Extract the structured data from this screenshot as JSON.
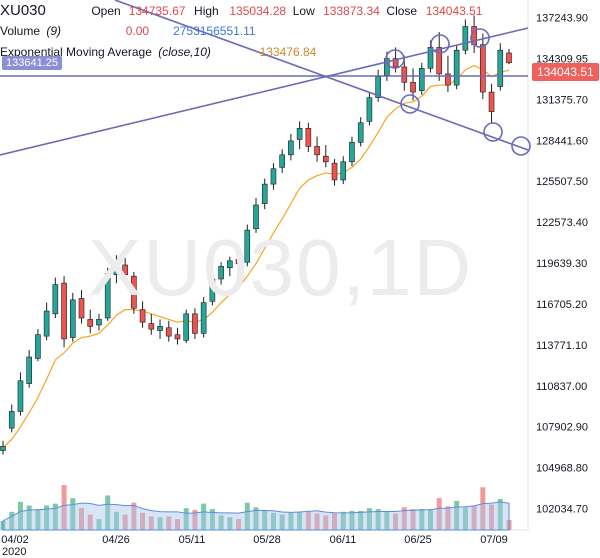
{
  "legend": {
    "symbol": "XU030",
    "open_label": "Open",
    "open_value": "134735.67",
    "high_label": "High",
    "high_value": "135034.28",
    "low_label": "Low",
    "low_value": "133873.34",
    "close_label": "Close",
    "close_value": "134043.51",
    "volume_label": "Volume",
    "volume_param": "(9)",
    "volume_value": "0.00",
    "volume_ma_value": "2753156551.11",
    "ema_label": "Exponential Moving Average",
    "ema_param": "(close,10)",
    "ema_value": "133476.84"
  },
  "watermark": "XU030,1D",
  "price_tags": {
    "left_value": "133641.25",
    "right_value": "134043.51"
  },
  "colors": {
    "up": "#26a69a",
    "down": "#ef5350",
    "ema": "#f5a623",
    "trendline": "#6b6bb8",
    "volume_ma": "#a9c6ee"
  },
  "chart_data": {
    "type": "candlestick",
    "ylim": [
      100500,
      138500
    ],
    "y_ticks": [
      "137243.90",
      "134309.95",
      "131375.70",
      "128441.60",
      "125507.50",
      "122573.40",
      "119639.30",
      "116705.20",
      "113771.10",
      "110837.00",
      "107902.90",
      "104968.80",
      "102034.70"
    ],
    "x_ticks": [
      "04/02",
      "04/26",
      "05/11",
      "05/28",
      "06/11",
      "06/25",
      "07/09"
    ],
    "x_sublabel": "2020",
    "candles": [
      {
        "o": 106200,
        "h": 106900,
        "l": 105900,
        "c": 106500
      },
      {
        "o": 107800,
        "h": 109500,
        "l": 107500,
        "c": 109000
      },
      {
        "o": 109000,
        "h": 111800,
        "l": 108700,
        "c": 111200
      },
      {
        "o": 111000,
        "h": 113400,
        "l": 110700,
        "c": 112900
      },
      {
        "o": 112800,
        "h": 114900,
        "l": 112600,
        "c": 114500
      },
      {
        "o": 114400,
        "h": 116800,
        "l": 114100,
        "c": 116200
      },
      {
        "o": 116000,
        "h": 118600,
        "l": 115700,
        "c": 118100
      },
      {
        "o": 118200,
        "h": 118700,
        "l": 113600,
        "c": 114200
      },
      {
        "o": 114300,
        "h": 117500,
        "l": 114000,
        "c": 117000
      },
      {
        "o": 117100,
        "h": 117700,
        "l": 115300,
        "c": 115700
      },
      {
        "o": 115600,
        "h": 116300,
        "l": 114600,
        "c": 115100
      },
      {
        "o": 115200,
        "h": 116000,
        "l": 114800,
        "c": 115600
      },
      {
        "o": 115700,
        "h": 119300,
        "l": 115500,
        "c": 118900
      },
      {
        "o": 118800,
        "h": 120200,
        "l": 118200,
        "c": 119400
      },
      {
        "o": 119500,
        "h": 120000,
        "l": 118300,
        "c": 118800
      },
      {
        "o": 118700,
        "h": 119000,
        "l": 116000,
        "c": 116400
      },
      {
        "o": 116300,
        "h": 116900,
        "l": 115000,
        "c": 115400
      },
      {
        "o": 115300,
        "h": 116000,
        "l": 114500,
        "c": 114900
      },
      {
        "o": 114800,
        "h": 115600,
        "l": 114200,
        "c": 115100
      },
      {
        "o": 115000,
        "h": 115500,
        "l": 114000,
        "c": 114400
      },
      {
        "o": 114500,
        "h": 115000,
        "l": 113800,
        "c": 114200
      },
      {
        "o": 114100,
        "h": 116300,
        "l": 113900,
        "c": 116000
      },
      {
        "o": 116000,
        "h": 116400,
        "l": 114200,
        "c": 114600
      },
      {
        "o": 114600,
        "h": 117200,
        "l": 114300,
        "c": 116800
      },
      {
        "o": 116900,
        "h": 118900,
        "l": 116600,
        "c": 118500
      },
      {
        "o": 118500,
        "h": 119700,
        "l": 118100,
        "c": 119400
      },
      {
        "o": 119300,
        "h": 120100,
        "l": 118700,
        "c": 119800
      },
      {
        "o": 119900,
        "h": 120300,
        "l": 119100,
        "c": 119600
      },
      {
        "o": 119700,
        "h": 122400,
        "l": 119400,
        "c": 122000
      },
      {
        "o": 122100,
        "h": 124300,
        "l": 121800,
        "c": 123800
      },
      {
        "o": 123900,
        "h": 125700,
        "l": 123500,
        "c": 125300
      },
      {
        "o": 125300,
        "h": 126800,
        "l": 124900,
        "c": 126400
      },
      {
        "o": 126500,
        "h": 127800,
        "l": 126100,
        "c": 127400
      },
      {
        "o": 127400,
        "h": 128900,
        "l": 127000,
        "c": 128400
      },
      {
        "o": 128500,
        "h": 129800,
        "l": 127800,
        "c": 129300
      },
      {
        "o": 129300,
        "h": 129700,
        "l": 127600,
        "c": 128000
      },
      {
        "o": 128000,
        "h": 128700,
        "l": 126900,
        "c": 127400
      },
      {
        "o": 127300,
        "h": 128100,
        "l": 126500,
        "c": 126900
      },
      {
        "o": 126800,
        "h": 127100,
        "l": 125200,
        "c": 125600
      },
      {
        "o": 125600,
        "h": 127300,
        "l": 125300,
        "c": 126900
      },
      {
        "o": 126900,
        "h": 128700,
        "l": 126600,
        "c": 128300
      },
      {
        "o": 128300,
        "h": 130100,
        "l": 128000,
        "c": 129700
      },
      {
        "o": 129800,
        "h": 131900,
        "l": 129500,
        "c": 131500
      },
      {
        "o": 131500,
        "h": 133500,
        "l": 131200,
        "c": 133000
      },
      {
        "o": 133100,
        "h": 134800,
        "l": 132700,
        "c": 134300
      },
      {
        "o": 134300,
        "h": 135100,
        "l": 133300,
        "c": 133700
      },
      {
        "o": 133700,
        "h": 134500,
        "l": 132000,
        "c": 132600
      },
      {
        "o": 132600,
        "h": 133600,
        "l": 131300,
        "c": 131900
      },
      {
        "o": 132000,
        "h": 134000,
        "l": 131700,
        "c": 133600
      },
      {
        "o": 133600,
        "h": 135600,
        "l": 133300,
        "c": 135100
      },
      {
        "o": 135100,
        "h": 136200,
        "l": 132700,
        "c": 133200
      },
      {
        "o": 133200,
        "h": 134500,
        "l": 131900,
        "c": 132400
      },
      {
        "o": 132400,
        "h": 135300,
        "l": 132100,
        "c": 134900
      },
      {
        "o": 134900,
        "h": 137100,
        "l": 134600,
        "c": 136600
      },
      {
        "o": 136600,
        "h": 137400,
        "l": 134700,
        "c": 135300
      },
      {
        "o": 135300,
        "h": 136100,
        "l": 131400,
        "c": 131900
      },
      {
        "o": 131900,
        "h": 132500,
        "l": 129700,
        "c": 130500
      },
      {
        "o": 132300,
        "h": 135400,
        "l": 132000,
        "c": 134900
      },
      {
        "o": 134700,
        "h": 135000,
        "l": 133900,
        "c": 134000
      }
    ],
    "ema": [
      106400,
      107000,
      107900,
      108900,
      110000,
      111300,
      112700,
      113200,
      113900,
      114300,
      114400,
      114600,
      115200,
      115900,
      116300,
      116300,
      116200,
      116000,
      115800,
      115600,
      115400,
      115500,
      115400,
      115600,
      116100,
      116800,
      117400,
      117900,
      118700,
      119600,
      120700,
      121800,
      122800,
      123900,
      125000,
      125600,
      125900,
      126100,
      126000,
      126100,
      126500,
      127100,
      128000,
      129000,
      130100,
      130700,
      131100,
      131200,
      131600,
      132300,
      132400,
      132400,
      132800,
      133500,
      133800,
      133500,
      133000,
      133300,
      133476
    ]
  }
}
